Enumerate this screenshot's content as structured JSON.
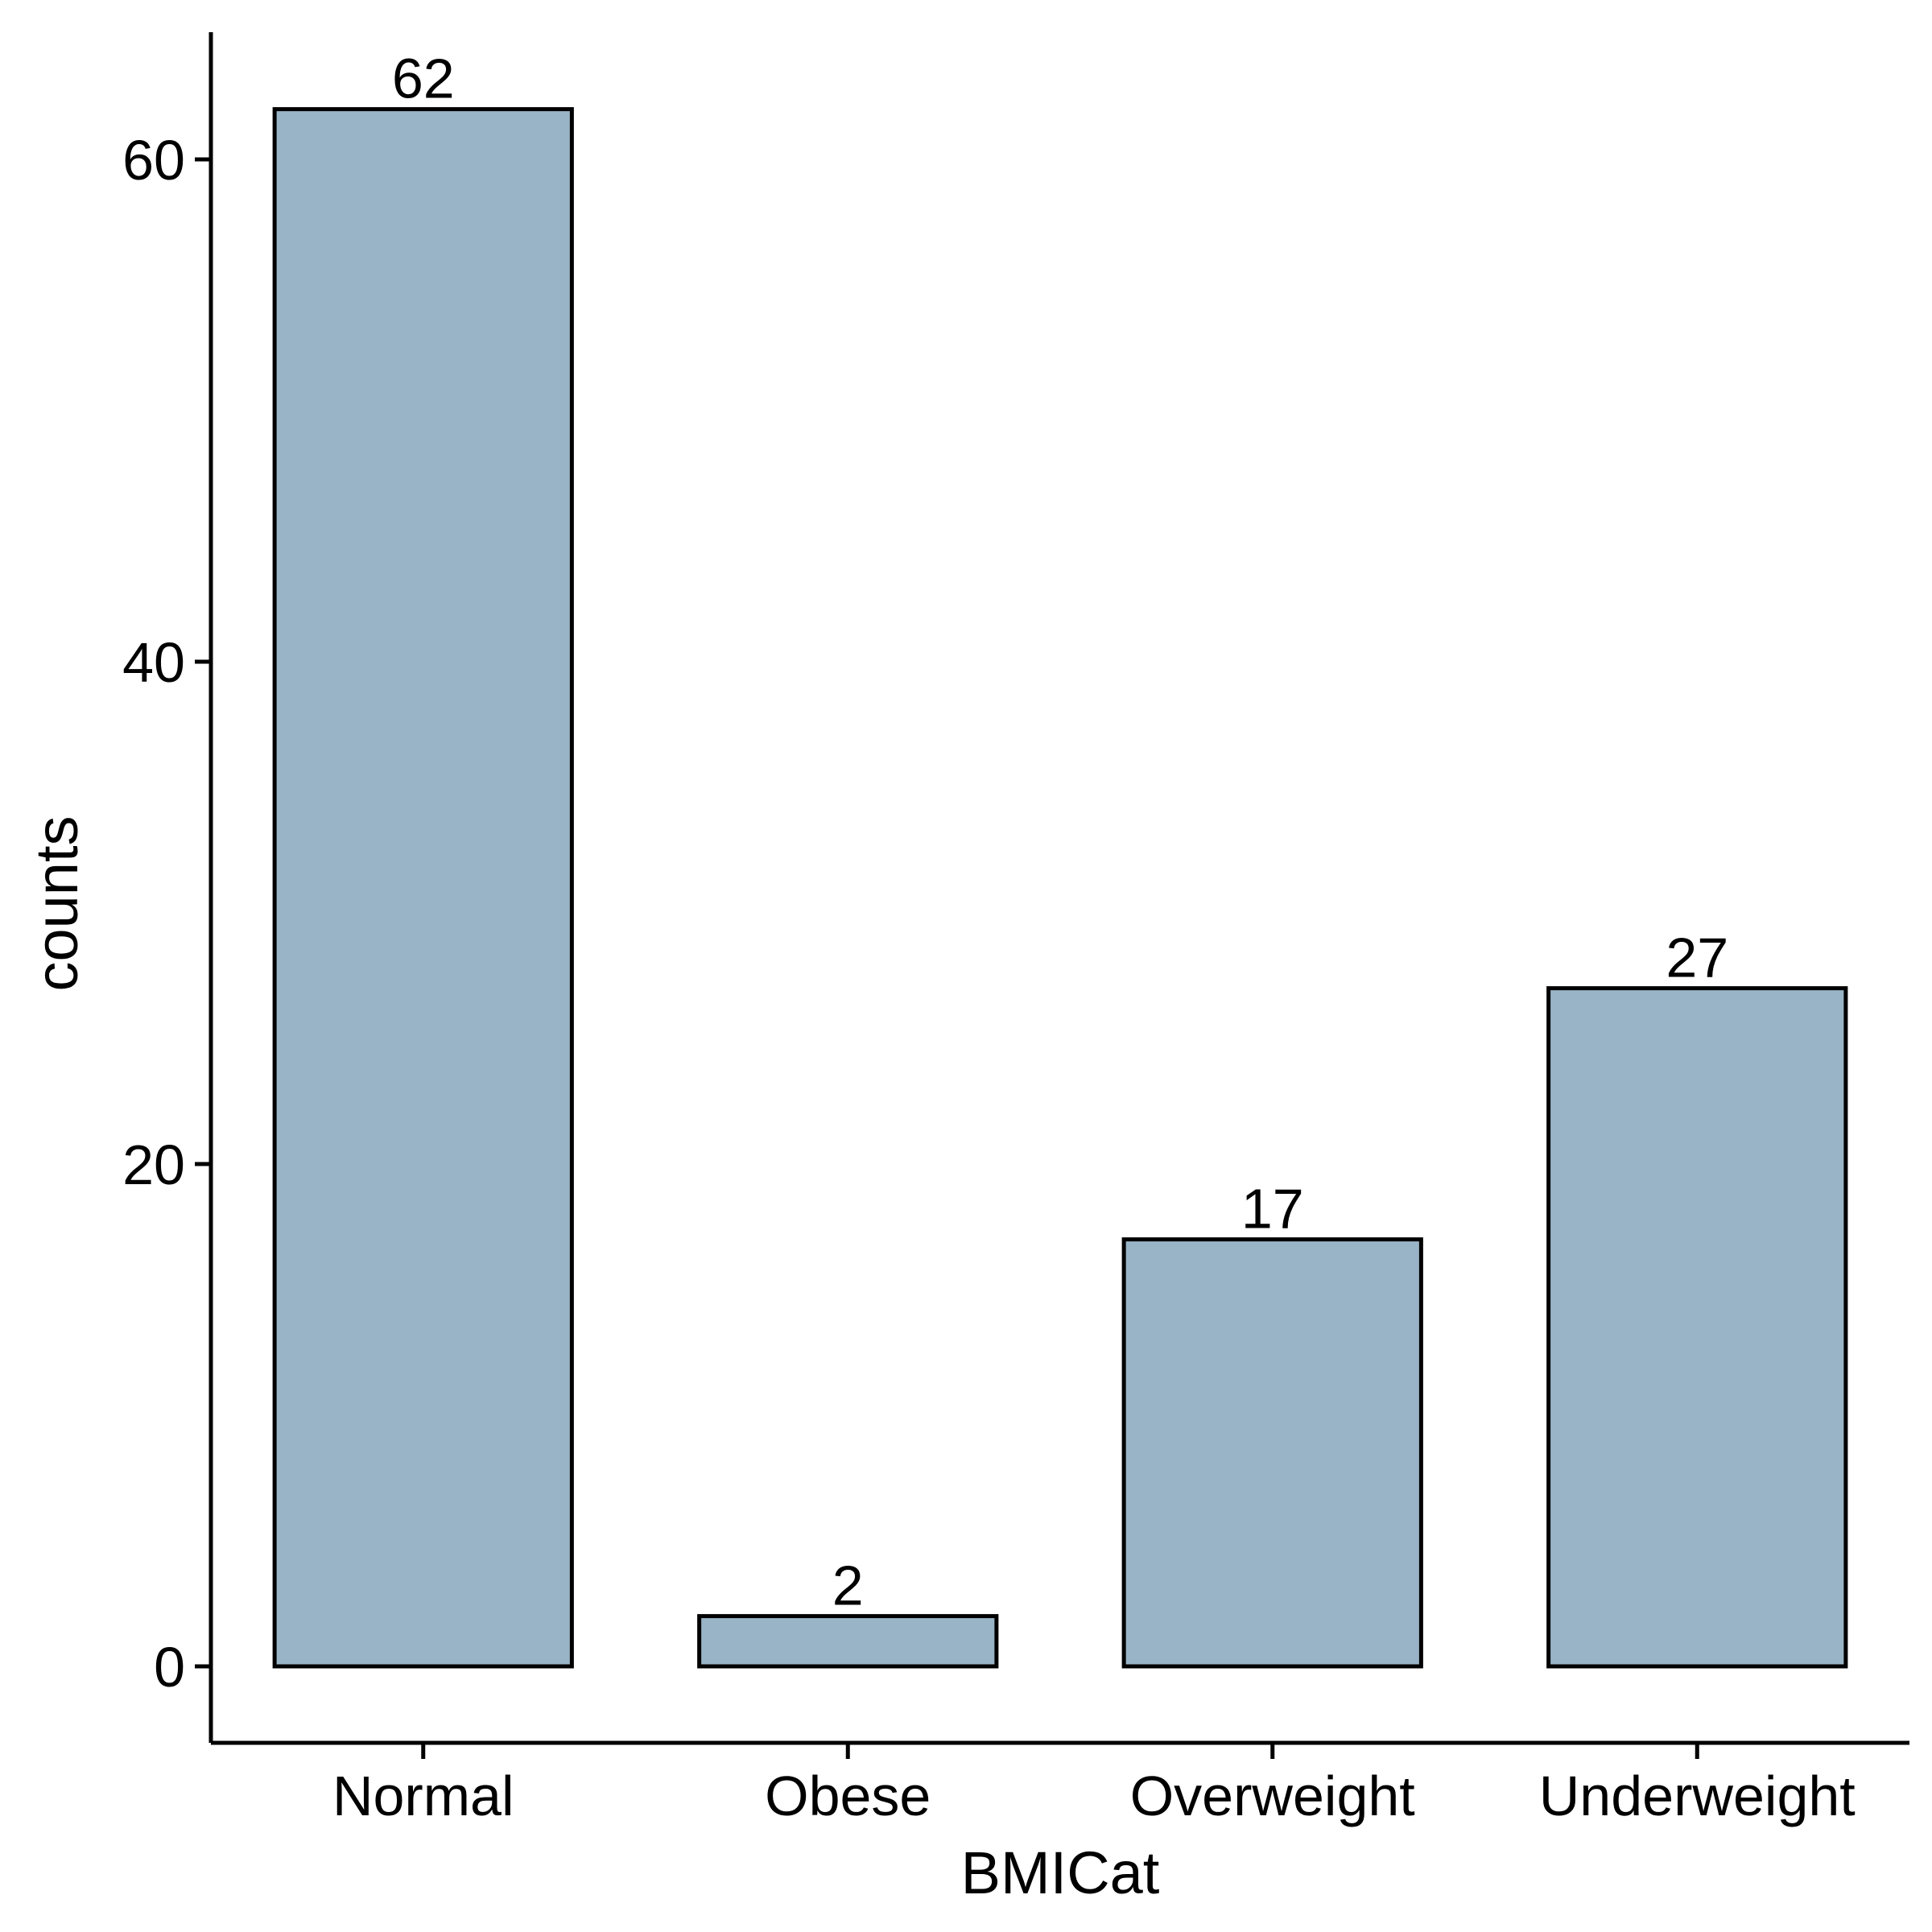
{
  "chart_data": {
    "type": "bar",
    "categories": [
      "Normal",
      "Obese",
      "Overweight",
      "Underweight"
    ],
    "values": [
      62,
      2,
      17,
      27
    ],
    "data_labels": [
      "62",
      "2",
      "17",
      "27"
    ],
    "title": "",
    "xlabel": "BMICat",
    "ylabel": "counts",
    "yticks": [
      0,
      20,
      40,
      60
    ],
    "ylim": [
      -3.1,
      65.1
    ],
    "grid": false,
    "legend": "none",
    "colors": {
      "bar_fill": "#99b4c7",
      "bar_stroke": "#000000",
      "axis": "#000000",
      "text": "#000000"
    }
  }
}
